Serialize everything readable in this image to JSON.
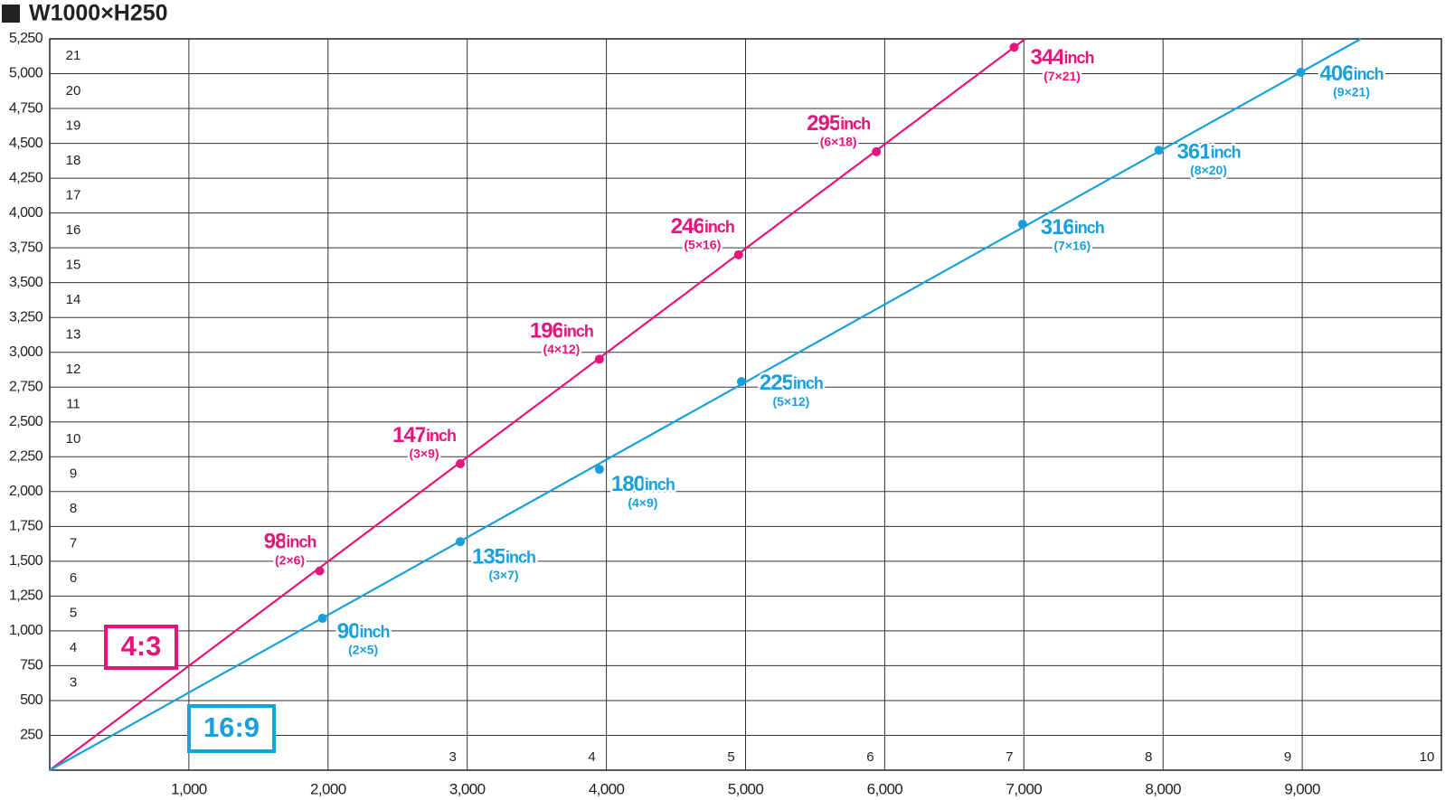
{
  "chart_data": {
    "type": "scatter",
    "title": "W1000×H250",
    "unit": "inch",
    "xlim": [
      0,
      10000
    ],
    "ylim": [
      0,
      5250
    ],
    "xticks": [
      {
        "value": 1000,
        "label": "1,000"
      },
      {
        "value": 2000,
        "label": "2,000"
      },
      {
        "value": 3000,
        "label": "3,000"
      },
      {
        "value": 4000,
        "label": "4,000"
      },
      {
        "value": 5000,
        "label": "5,000"
      },
      {
        "value": 6000,
        "label": "6,000"
      },
      {
        "value": 7000,
        "label": "7,000"
      },
      {
        "value": 8000,
        "label": "8,000"
      },
      {
        "value": 9000,
        "label": "9,000"
      }
    ],
    "yticks": [
      250,
      500,
      750,
      {
        "value": 1000,
        "label": "1,000"
      },
      {
        "value": 1250,
        "label": "1,250"
      },
      {
        "value": 1500,
        "label": "1,500"
      },
      {
        "value": 1750,
        "label": "1,750"
      },
      {
        "value": 2000,
        "label": "2,000"
      },
      {
        "value": 2250,
        "label": "2,250"
      },
      {
        "value": 2500,
        "label": "2,500"
      },
      {
        "value": 2750,
        "label": "2,750"
      },
      {
        "value": 3000,
        "label": "3,000"
      },
      {
        "value": 3250,
        "label": "3,250"
      },
      {
        "value": 3500,
        "label": "3,500"
      },
      {
        "value": 3750,
        "label": "3,750"
      },
      {
        "value": 4000,
        "label": "4,000"
      },
      {
        "value": 4250,
        "label": "4,250"
      },
      {
        "value": 4500,
        "label": "4,500"
      },
      {
        "value": 4750,
        "label": "4,750"
      },
      {
        "value": 5000,
        "label": "5,000"
      },
      {
        "value": 5250,
        "label": "5,250"
      }
    ],
    "row_counts": [
      3,
      4,
      5,
      6,
      7,
      8,
      9,
      10,
      11,
      12,
      13,
      14,
      15,
      16,
      17,
      18,
      19,
      20,
      21
    ],
    "col_counts": [
      3,
      4,
      5,
      6,
      7,
      8,
      9,
      10
    ],
    "grid": true,
    "series": [
      {
        "name": "4:3",
        "color": "#e4157b",
        "x": [
          1940,
          2950,
          3950,
          4950,
          5940,
          6930
        ],
        "values": [
          1430,
          2200,
          2950,
          3700,
          4440,
          5190
        ],
        "labels": [
          "98",
          "147",
          "196",
          "246",
          "295",
          "344"
        ],
        "sublabels": [
          "(2×6)",
          "(3×9)",
          "(4×12)",
          "(5×16)",
          "(6×18)",
          "(7×21)"
        ]
      },
      {
        "name": "16:9",
        "color": "#19a0dc",
        "x": [
          1960,
          2950,
          3950,
          4970,
          6990,
          7970,
          8990
        ],
        "values": [
          1090,
          1640,
          2160,
          2790,
          3920,
          4450,
          5010
        ],
        "labels": [
          "90",
          "135",
          "180",
          "225",
          "316",
          "361",
          "406"
        ],
        "sublabels": [
          "(2×5)",
          "(3×7)",
          "(4×9)",
          "(5×12)",
          "(7×16)",
          "(8×20)",
          "(9×21)"
        ]
      }
    ]
  }
}
